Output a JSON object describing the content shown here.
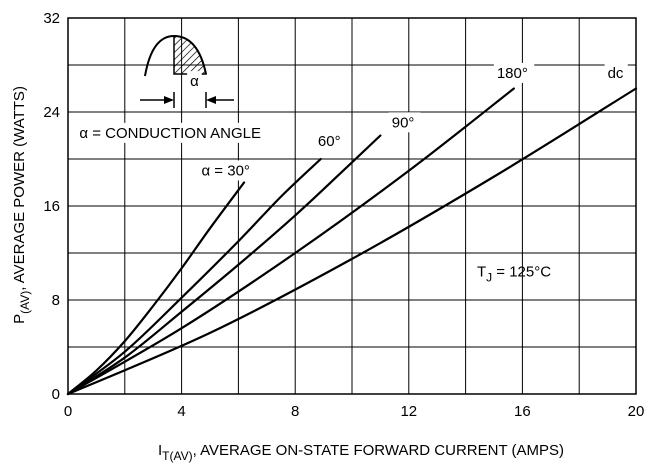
{
  "chart_data": {
    "type": "line",
    "title": "",
    "xlabel": {
      "main": "I",
      "sub": "T(AV)",
      "rest": ", AVERAGE ON-STATE FORWARD CURRENT (AMPS)"
    },
    "ylabel": {
      "main": "P",
      "sub": "(AV)",
      "rest": ", AVERAGE POWER (WATTS)"
    },
    "xlim": [
      0,
      20
    ],
    "ylim": [
      0,
      32
    ],
    "xticks": [
      0,
      4,
      8,
      12,
      16,
      20
    ],
    "yticks": [
      0,
      8,
      16,
      24,
      32
    ],
    "grid": true,
    "grid_x_step": 2,
    "grid_y_step": 4,
    "series": [
      {
        "name": "α = 30°",
        "x": [
          0,
          1,
          2,
          3,
          4,
          5,
          6.2
        ],
        "y": [
          0,
          2.0,
          4.5,
          7.5,
          10.7,
          14.1,
          18.0
        ]
      },
      {
        "name": "60°",
        "x": [
          0,
          2,
          4,
          6,
          7.5,
          8.9
        ],
        "y": [
          0,
          3.6,
          8.2,
          13.0,
          16.8,
          20.0
        ]
      },
      {
        "name": "90°",
        "x": [
          0,
          2,
          4,
          6,
          8,
          9.6,
          11.0
        ],
        "y": [
          0,
          3.1,
          7.0,
          11.0,
          15.2,
          18.8,
          22.0
        ]
      },
      {
        "name": "180°",
        "x": [
          0,
          4,
          8,
          12,
          15.7
        ],
        "y": [
          0,
          5.6,
          12.0,
          19.0,
          26.0
        ]
      },
      {
        "name": "dc",
        "x": [
          0,
          5,
          10,
          15,
          20
        ],
        "y": [
          0,
          5.2,
          11.5,
          18.5,
          26.0
        ]
      }
    ],
    "annotations": [
      {
        "text": "α = 30°",
        "x": 4.7,
        "y": 18.6
      },
      {
        "text": "60°",
        "x": 8.8,
        "y": 21.1
      },
      {
        "text": "90°",
        "x": 11.4,
        "y": 22.7
      },
      {
        "text": "180°",
        "x": 15.1,
        "y": 26.9
      },
      {
        "text": "dc",
        "x": 19.0,
        "y": 26.9
      },
      {
        "text": "α = CONDUCTION ANGLE",
        "x": 0.4,
        "y": 21.8
      },
      {
        "text": "T",
        "x": 14.4,
        "y": 10.0,
        "sub": "J",
        "rest": " = 125°C"
      },
      {
        "text": "α",
        "x": 4.3,
        "y": 26.2
      }
    ]
  }
}
